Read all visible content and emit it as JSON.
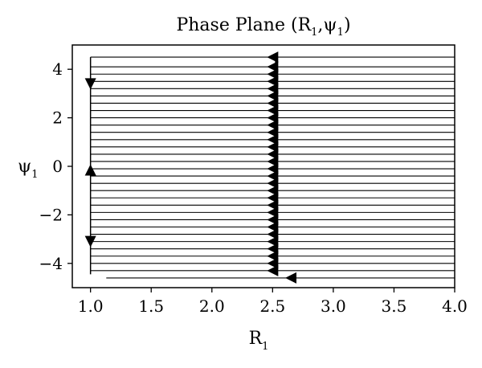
{
  "chart_data": {
    "type": "phase-plane",
    "title": {
      "text": "Phase Plane (R",
      "sub1": "1",
      "mid": ",ψ",
      "sub2": "1",
      "end": ")"
    },
    "xlabel": {
      "main": "R",
      "sub": "1"
    },
    "ylabel": {
      "main": "ψ",
      "sub": "1"
    },
    "xlim": [
      0.85,
      4.0
    ],
    "ylim": [
      -5.0,
      5.0
    ],
    "xticks": [
      {
        "value": 1.0,
        "label": "1.0"
      },
      {
        "value": 1.5,
        "label": "1.5"
      },
      {
        "value": 2.0,
        "label": "2.0"
      },
      {
        "value": 2.5,
        "label": "2.5"
      },
      {
        "value": 3.0,
        "label": "3.0"
      },
      {
        "value": 3.5,
        "label": "3.5"
      },
      {
        "value": 4.0,
        "label": "4.0"
      }
    ],
    "yticks": [
      {
        "value": 4,
        "label": "4"
      },
      {
        "value": 2,
        "label": "2"
      },
      {
        "value": 0,
        "label": "0"
      },
      {
        "value": -2,
        "label": "−2"
      },
      {
        "value": -4,
        "label": "−4"
      }
    ],
    "grid": false,
    "trajectories": {
      "horizontal_psi": [
        4.5,
        4.1,
        3.8,
        3.5,
        3.2,
        2.9,
        2.6,
        2.3,
        2.0,
        1.7,
        1.4,
        1.1,
        0.8,
        0.5,
        0.2,
        -0.1,
        -0.4,
        -0.7,
        -1.0,
        -1.3,
        -1.6,
        -1.9,
        -2.2,
        -2.5,
        -2.8,
        -3.1,
        -3.4,
        -3.7,
        -4.0,
        -4.3
      ],
      "x_start": 1.0,
      "x_end": 4.0,
      "arrow_x": 2.5,
      "bottom_line": {
        "psi": -4.6,
        "x_start": 1.13,
        "x_end": 4.0,
        "arrow_x": 2.65
      },
      "vertical_line": {
        "x": 1.0,
        "psi_min": -4.45,
        "psi_max": 4.5
      },
      "vertical_arrows": [
        {
          "psi": 3.4,
          "dir": "down"
        },
        {
          "psi": -0.15,
          "dir": "up"
        },
        {
          "psi": -3.1,
          "dir": "down"
        }
      ],
      "right_edge_line": {
        "x": 2.53,
        "psi_min": -4.3,
        "psi_max": 4.6
      }
    }
  }
}
